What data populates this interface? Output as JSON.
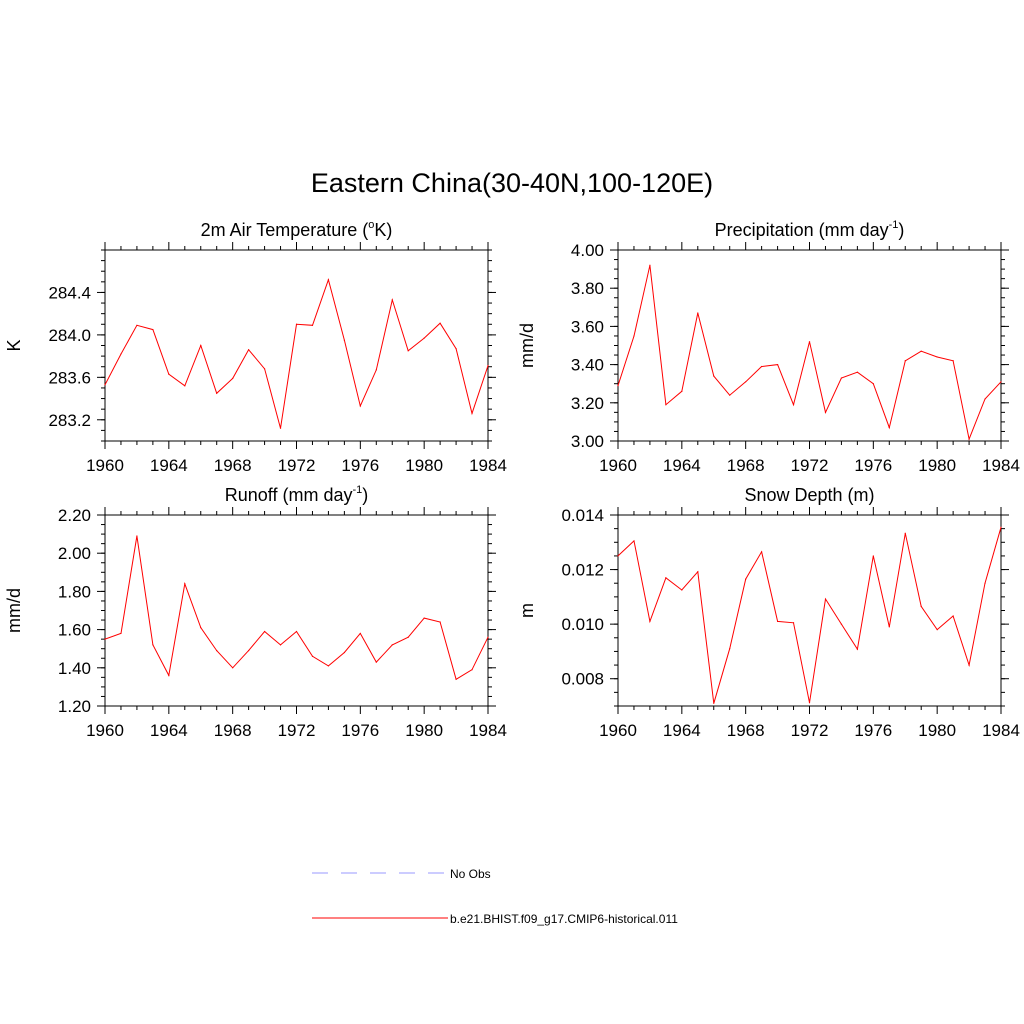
{
  "figure": {
    "title": "Eastern China(30-40N,100-120E)"
  },
  "chart_data": [
    {
      "type": "line",
      "title": "2m Air Temperature (",
      "title_sup": "o",
      "title_tail": "K)",
      "xlabel": "",
      "ylabel": "K",
      "xlim": [
        1960,
        1984
      ],
      "ylim": [
        283.0,
        284.8
      ],
      "xticks": [
        1960,
        1964,
        1968,
        1972,
        1976,
        1980,
        1984
      ],
      "yticks": [
        "283.2",
        "283.6",
        "284.0",
        "284.4"
      ],
      "x": [
        1960,
        1961,
        1962,
        1963,
        1964,
        1965,
        1966,
        1967,
        1968,
        1969,
        1970,
        1971,
        1972,
        1973,
        1974,
        1975,
        1976,
        1977,
        1978,
        1979,
        1980,
        1981,
        1982,
        1983,
        1984
      ],
      "series": [
        {
          "name": "b.e21.BHIST.f09_g17.CMIP6-historical.011",
          "color": "#ff0000",
          "values": [
            283.53,
            283.82,
            284.09,
            284.05,
            283.63,
            283.52,
            283.9,
            283.45,
            283.59,
            283.86,
            283.68,
            283.12,
            284.1,
            284.09,
            284.52,
            283.95,
            283.33,
            283.67,
            284.33,
            283.85,
            283.97,
            284.11,
            283.87,
            283.26,
            283.71
          ]
        }
      ]
    },
    {
      "type": "line",
      "title": "Precipitation (mm day",
      "title_sup": "-1",
      "title_tail": ")",
      "xlabel": "",
      "ylabel": "mm/d",
      "xlim": [
        1960,
        1984
      ],
      "ylim": [
        3.0,
        4.0
      ],
      "xticks": [
        1960,
        1964,
        1968,
        1972,
        1976,
        1980,
        1984
      ],
      "yticks": [
        "3.00",
        "3.20",
        "3.40",
        "3.60",
        "3.80",
        "4.00"
      ],
      "x": [
        1960,
        1961,
        1962,
        1963,
        1964,
        1965,
        1966,
        1967,
        1968,
        1969,
        1970,
        1971,
        1972,
        1973,
        1974,
        1975,
        1976,
        1977,
        1978,
        1979,
        1980,
        1981,
        1982,
        1983,
        1984
      ],
      "series": [
        {
          "name": "b.e21.BHIST.f09_g17.CMIP6-historical.011",
          "color": "#ff0000",
          "values": [
            3.29,
            3.55,
            3.92,
            3.19,
            3.26,
            3.67,
            3.34,
            3.24,
            3.31,
            3.39,
            3.4,
            3.19,
            3.52,
            3.15,
            3.33,
            3.36,
            3.3,
            3.07,
            3.42,
            3.47,
            3.44,
            3.42,
            3.01,
            3.22,
            3.31
          ]
        }
      ]
    },
    {
      "type": "line",
      "title": "Runoff (mm day",
      "title_sup": "-1",
      "title_tail": ")",
      "xlabel": "",
      "ylabel": "mm/d",
      "xlim": [
        1960,
        1984
      ],
      "ylim": [
        1.2,
        2.2
      ],
      "xticks": [
        1960,
        1964,
        1968,
        1972,
        1976,
        1980,
        1984
      ],
      "yticks": [
        "1.20",
        "1.40",
        "1.60",
        "1.80",
        "2.00",
        "2.20"
      ],
      "x": [
        1960,
        1961,
        1962,
        1963,
        1964,
        1965,
        1966,
        1967,
        1968,
        1969,
        1970,
        1971,
        1972,
        1973,
        1974,
        1975,
        1976,
        1977,
        1978,
        1979,
        1980,
        1981,
        1982,
        1983,
        1984
      ],
      "series": [
        {
          "name": "b.e21.BHIST.f09_g17.CMIP6-historical.011",
          "color": "#ff0000",
          "values": [
            1.55,
            1.58,
            2.09,
            1.52,
            1.36,
            1.84,
            1.61,
            1.49,
            1.4,
            1.49,
            1.59,
            1.52,
            1.59,
            1.46,
            1.41,
            1.48,
            1.58,
            1.43,
            1.52,
            1.56,
            1.66,
            1.64,
            1.34,
            1.39,
            1.56
          ]
        }
      ]
    },
    {
      "type": "line",
      "title": "Snow Depth (m)",
      "title_sup": "",
      "title_tail": "",
      "xlabel": "",
      "ylabel": "m",
      "xlim": [
        1960,
        1984
      ],
      "ylim": [
        0.007,
        0.014
      ],
      "xticks": [
        1960,
        1964,
        1968,
        1972,
        1976,
        1980,
        1984
      ],
      "yticks": [
        "0.008",
        "0.010",
        "0.012",
        "0.014"
      ],
      "x": [
        1960,
        1961,
        1962,
        1963,
        1964,
        1965,
        1966,
        1967,
        1968,
        1969,
        1970,
        1971,
        1972,
        1973,
        1974,
        1975,
        1976,
        1977,
        1978,
        1979,
        1980,
        1981,
        1982,
        1983,
        1984
      ],
      "series": [
        {
          "name": "b.e21.BHIST.f09_g17.CMIP6-historical.011",
          "color": "#ff0000",
          "values": [
            0.0125,
            0.01305,
            0.0101,
            0.0117,
            0.01125,
            0.01192,
            0.0071,
            0.0091,
            0.01165,
            0.01265,
            0.0101,
            0.01005,
            0.00712,
            0.01092,
            0.01,
            0.00908,
            0.0125,
            0.0099,
            0.01333,
            0.01065,
            0.0098,
            0.0103,
            0.0085,
            0.0115,
            0.01355
          ]
        }
      ]
    }
  ],
  "legend": {
    "items": [
      {
        "label": "No Obs",
        "color": "#9999ff",
        "style": "dashed"
      },
      {
        "label": "b.e21.BHIST.f09_g17.CMIP6-historical.011",
        "color": "#ff0000",
        "style": "solid"
      }
    ]
  }
}
